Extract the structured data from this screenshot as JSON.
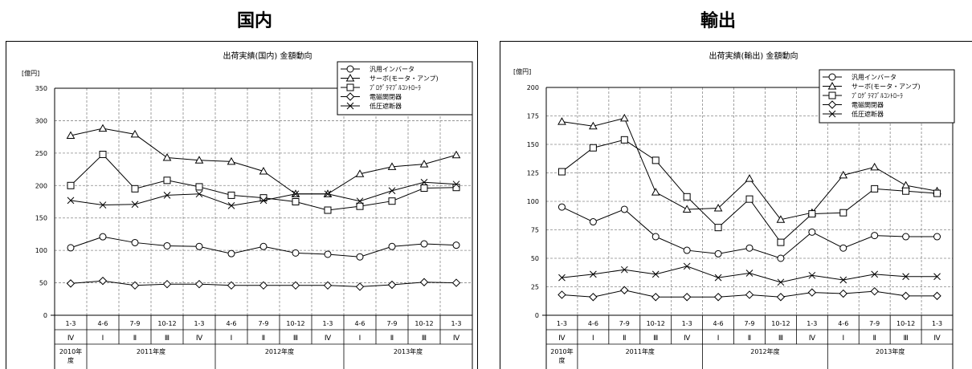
{
  "sections": [
    {
      "title": "国内"
    },
    {
      "title": "輸出"
    }
  ],
  "chart_data": [
    {
      "type": "line",
      "title": "出荷実績(国内) 金額動向",
      "ylabel": "[億円]",
      "ylim": [
        0,
        350
      ],
      "yticks": [
        "0",
        "50",
        "100",
        "150",
        "200",
        "250",
        "300",
        "350"
      ],
      "categories": [
        "1-3",
        "4-6",
        "7-9",
        "10-12",
        "1-3",
        "4-6",
        "7-9",
        "10-12",
        "1-3",
        "4-6",
        "7-9",
        "10-12",
        "1-3"
      ],
      "quarters": [
        "Ⅳ",
        "Ⅰ",
        "Ⅱ",
        "Ⅲ",
        "Ⅳ",
        "Ⅰ",
        "Ⅱ",
        "Ⅲ",
        "Ⅳ",
        "Ⅰ",
        "Ⅱ",
        "Ⅲ",
        "Ⅳ"
      ],
      "year_groups": [
        {
          "label": "2010年\n度",
          "span": 1
        },
        {
          "label": "2011年度",
          "span": 4
        },
        {
          "label": "2012年度",
          "span": 4
        },
        {
          "label": "2013年度",
          "span": 4
        }
      ],
      "legend_position": "top-right",
      "grid": true,
      "series": [
        {
          "name": "汎用インバータ",
          "marker": "circle",
          "values": [
            104,
            121,
            112,
            107,
            106,
            95,
            106,
            96,
            94,
            90,
            106,
            110,
            108
          ]
        },
        {
          "name": "サーボ(モータ・アンプ)",
          "marker": "triangle",
          "values": [
            277,
            288,
            279,
            243,
            239,
            237,
            222,
            187,
            187,
            218,
            229,
            233,
            247
          ]
        },
        {
          "name": "ﾌﾟﾛｸﾞﾗﾏﾌﾞﾙｺﾝﾄﾛｰﾗ",
          "marker": "square",
          "values": [
            200,
            248,
            195,
            208,
            198,
            185,
            181,
            175,
            162,
            168,
            176,
            196,
            197
          ]
        },
        {
          "name": "電磁開閉器",
          "marker": "diamond",
          "values": [
            49,
            53,
            46,
            48,
            48,
            46,
            46,
            46,
            46,
            44,
            47,
            51,
            50
          ]
        },
        {
          "name": "低圧遮断器",
          "marker": "x",
          "values": [
            177,
            170,
            171,
            185,
            187,
            169,
            177,
            187,
            187,
            176,
            192,
            205,
            202
          ]
        }
      ]
    },
    {
      "type": "line",
      "title": "出荷実績(輸出) 金額動向",
      "ylabel": "[億円]",
      "ylim": [
        0,
        200
      ],
      "yticks": [
        "0",
        "25",
        "50",
        "75",
        "100",
        "125",
        "150",
        "175",
        "200"
      ],
      "categories": [
        "1-3",
        "4-6",
        "7-9",
        "10-12",
        "1-3",
        "4-6",
        "7-9",
        "10-12",
        "1-3",
        "4-6",
        "7-9",
        "10-12",
        "1-3"
      ],
      "quarters": [
        "Ⅳ",
        "Ⅰ",
        "Ⅱ",
        "Ⅲ",
        "Ⅳ",
        "Ⅰ",
        "Ⅱ",
        "Ⅲ",
        "Ⅳ",
        "Ⅰ",
        "Ⅱ",
        "Ⅲ",
        "Ⅳ"
      ],
      "year_groups": [
        {
          "label": "2010年\n度",
          "span": 1
        },
        {
          "label": "2011年度",
          "span": 4
        },
        {
          "label": "2012年度",
          "span": 4
        },
        {
          "label": "2013年度",
          "span": 4
        }
      ],
      "legend_position": "top-right",
      "grid": true,
      "series": [
        {
          "name": "汎用インバータ",
          "marker": "circle",
          "values": [
            95,
            82,
            93,
            69,
            57,
            54,
            59,
            50,
            73,
            59,
            70,
            69,
            69
          ]
        },
        {
          "name": "サーボ(モータ・アンプ)",
          "marker": "triangle",
          "values": [
            170,
            166,
            173,
            108,
            93,
            94,
            120,
            84,
            90,
            123,
            130,
            114,
            109
          ]
        },
        {
          "name": "ﾌﾟﾛｸﾞﾗﾏﾌﾞﾙｺﾝﾄﾛｰﾗ",
          "marker": "square",
          "values": [
            126,
            147,
            154,
            136,
            104,
            77,
            102,
            64,
            89,
            90,
            111,
            109,
            107
          ]
        },
        {
          "name": "電磁開閉器",
          "marker": "diamond",
          "values": [
            18,
            16,
            22,
            16,
            16,
            16,
            18,
            16,
            20,
            19,
            21,
            17,
            17
          ]
        },
        {
          "name": "低圧遮断器",
          "marker": "x",
          "values": [
            33,
            36,
            40,
            36,
            43,
            33,
            37,
            29,
            35,
            31,
            36,
            34,
            34
          ]
        }
      ]
    }
  ]
}
